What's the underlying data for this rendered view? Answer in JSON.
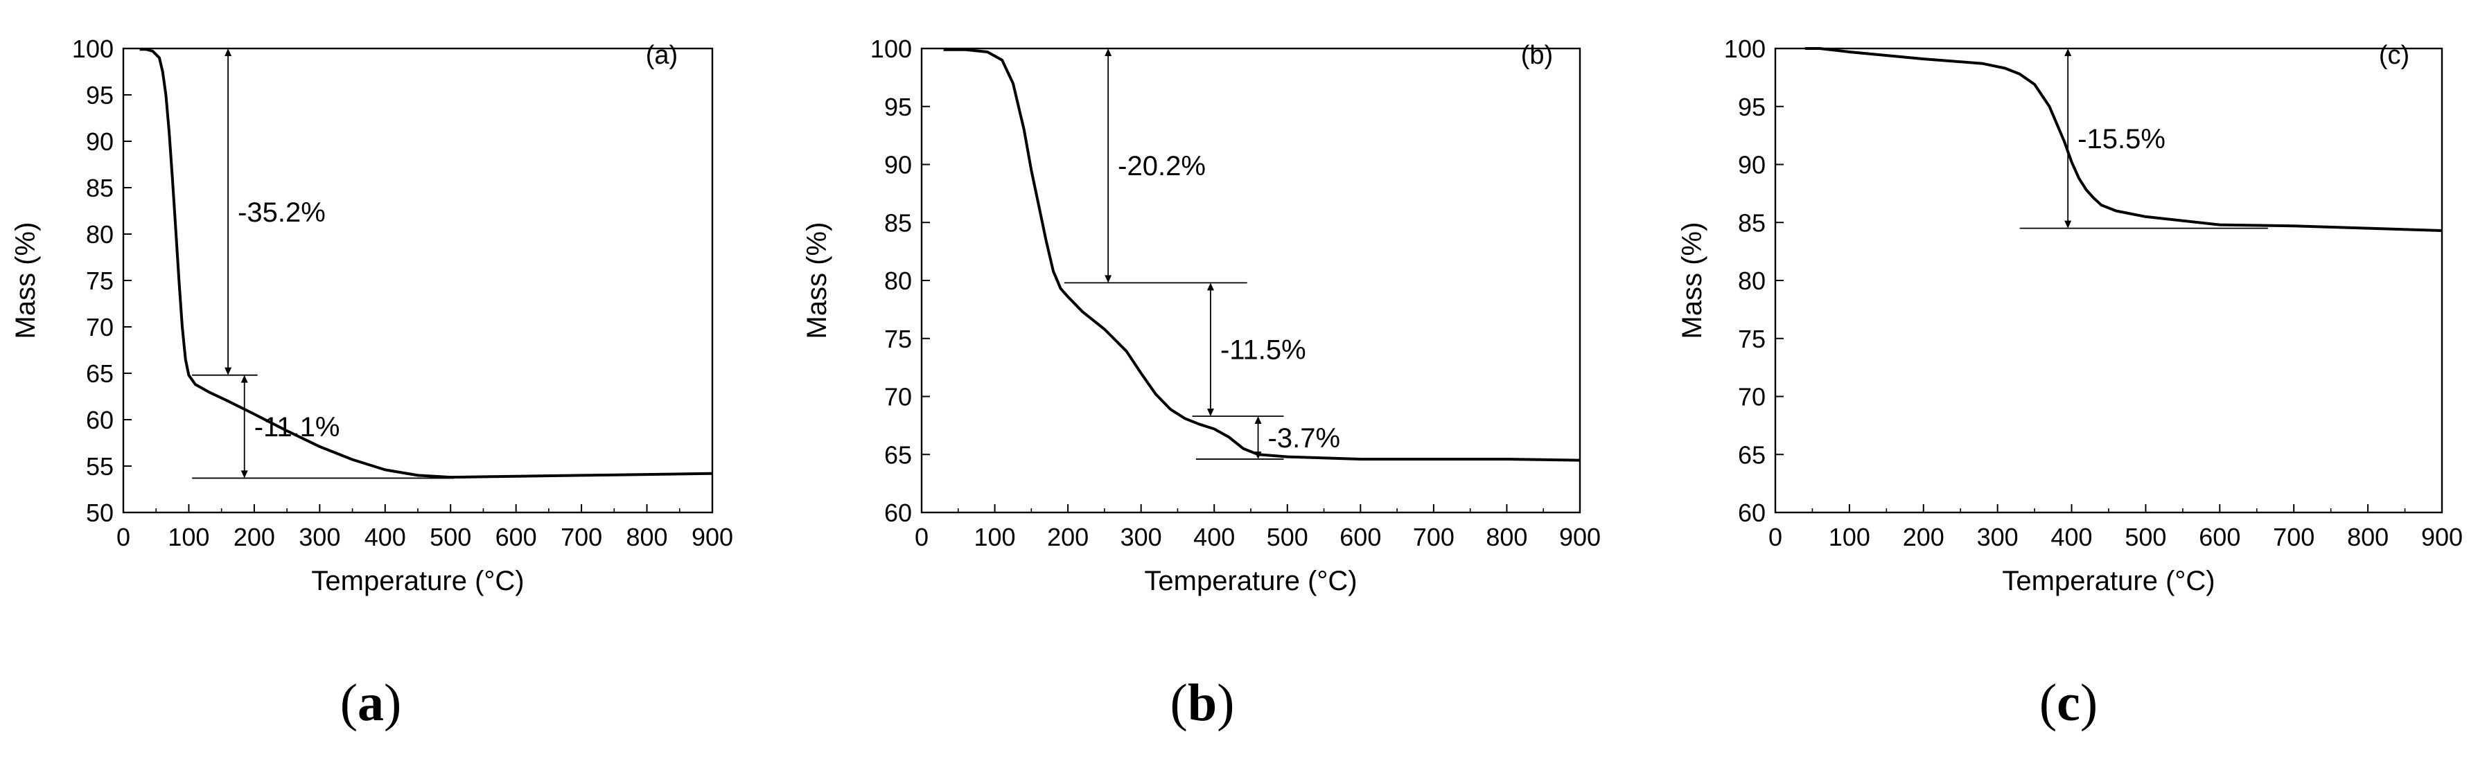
{
  "chart_data": [
    {
      "type": "line",
      "panel_tag": "(a)",
      "caption": {
        "open": "(",
        "letter": "a",
        "close": ")"
      },
      "xlabel": "Temperature (°C)",
      "ylabel": "Mass (%)",
      "xlim": [
        0,
        900
      ],
      "ylim": [
        50,
        100
      ],
      "xticks": [
        0,
        100,
        200,
        300,
        400,
        500,
        600,
        700,
        800,
        900
      ],
      "yticks": [
        50,
        55,
        60,
        65,
        70,
        75,
        80,
        85,
        90,
        95,
        100
      ],
      "series": [
        {
          "name": "mass",
          "x": [
            25,
            35,
            45,
            55,
            60,
            65,
            70,
            75,
            80,
            85,
            90,
            95,
            100,
            110,
            130,
            160,
            200,
            250,
            300,
            350,
            400,
            450,
            500,
            600,
            700,
            800,
            900
          ],
          "y": [
            99.9,
            99.9,
            99.7,
            99.0,
            97.5,
            95.0,
            91.0,
            86.0,
            80.5,
            75.0,
            70.0,
            66.5,
            64.8,
            63.8,
            63.0,
            62.0,
            60.6,
            58.8,
            57.1,
            55.7,
            54.6,
            54.0,
            53.8,
            53.9,
            54.0,
            54.1,
            54.2
          ]
        }
      ],
      "annotations": [
        {
          "label": "-35.2%",
          "x_arrow": 160,
          "y_top": 100.0,
          "y_bottom": 64.8,
          "line_top": [
            25,
            185
          ],
          "line_bottom": [
            105,
            205
          ]
        },
        {
          "label": "-11.1%",
          "x_arrow": 185,
          "y_top": 64.8,
          "y_bottom": 53.7,
          "line_bottom": [
            105,
            505
          ]
        }
      ]
    },
    {
      "type": "line",
      "panel_tag": "(b)",
      "caption": {
        "open": "(",
        "letter": "b",
        "close": ")"
      },
      "xlabel": "Temperature (°C)",
      "ylabel": "Mass (%)",
      "xlim": [
        0,
        900
      ],
      "ylim": [
        60,
        100
      ],
      "xticks": [
        0,
        100,
        200,
        300,
        400,
        500,
        600,
        700,
        800,
        900
      ],
      "yticks": [
        60,
        65,
        70,
        75,
        80,
        85,
        90,
        95,
        100
      ],
      "series": [
        {
          "name": "mass",
          "x": [
            30,
            60,
            90,
            110,
            125,
            140,
            150,
            160,
            170,
            180,
            190,
            200,
            220,
            250,
            280,
            300,
            320,
            340,
            360,
            380,
            400,
            420,
            440,
            460,
            500,
            600,
            700,
            800,
            900
          ],
          "y": [
            99.9,
            99.9,
            99.7,
            99.0,
            97.0,
            93.0,
            89.5,
            86.5,
            83.5,
            80.8,
            79.3,
            78.6,
            77.3,
            75.8,
            73.9,
            72.0,
            70.2,
            68.9,
            68.1,
            67.6,
            67.2,
            66.5,
            65.5,
            65.0,
            64.8,
            64.6,
            64.6,
            64.6,
            64.5
          ]
        }
      ],
      "annotations": [
        {
          "label": "-20.2%",
          "x_arrow": 255,
          "y_top": 100.0,
          "y_bottom": 79.8,
          "line_top": [
            30,
            285
          ],
          "line_bottom": [
            195,
            445
          ]
        },
        {
          "label": "-11.5%",
          "x_arrow": 395,
          "y_top": 79.8,
          "y_bottom": 68.3,
          "line_bottom": [
            370,
            495
          ]
        },
        {
          "label": "-3.7%",
          "x_arrow": 460,
          "y_top": 68.3,
          "y_bottom": 64.6,
          "line_bottom": [
            375,
            495
          ]
        }
      ]
    },
    {
      "type": "line",
      "panel_tag": "(c)",
      "caption": {
        "open": "(",
        "letter": "c",
        "close": ")"
      },
      "xlabel": "Temperature (°C)",
      "ylabel": "Mass (%)",
      "xlim": [
        0,
        900
      ],
      "ylim": [
        60,
        100
      ],
      "xticks": [
        0,
        100,
        200,
        300,
        400,
        500,
        600,
        700,
        800,
        900
      ],
      "yticks": [
        60,
        65,
        70,
        75,
        80,
        85,
        90,
        95,
        100
      ],
      "series": [
        {
          "name": "mass",
          "x": [
            40,
            60,
            100,
            200,
            280,
            310,
            330,
            350,
            370,
            380,
            390,
            400,
            410,
            420,
            430,
            440,
            460,
            500,
            600,
            700,
            800,
            900
          ],
          "y": [
            100.0,
            100.0,
            99.7,
            99.1,
            98.7,
            98.3,
            97.8,
            96.9,
            95.0,
            93.5,
            92.0,
            90.2,
            88.8,
            87.8,
            87.1,
            86.5,
            86.0,
            85.5,
            84.8,
            84.7,
            84.5,
            84.3
          ]
        }
      ],
      "annotations": [
        {
          "label": "-15.5%",
          "x_arrow": 395,
          "y_top": 100.0,
          "y_bottom": 84.5,
          "line_top": [
            40,
            490
          ],
          "line_bottom": [
            330,
            665
          ]
        }
      ]
    }
  ]
}
